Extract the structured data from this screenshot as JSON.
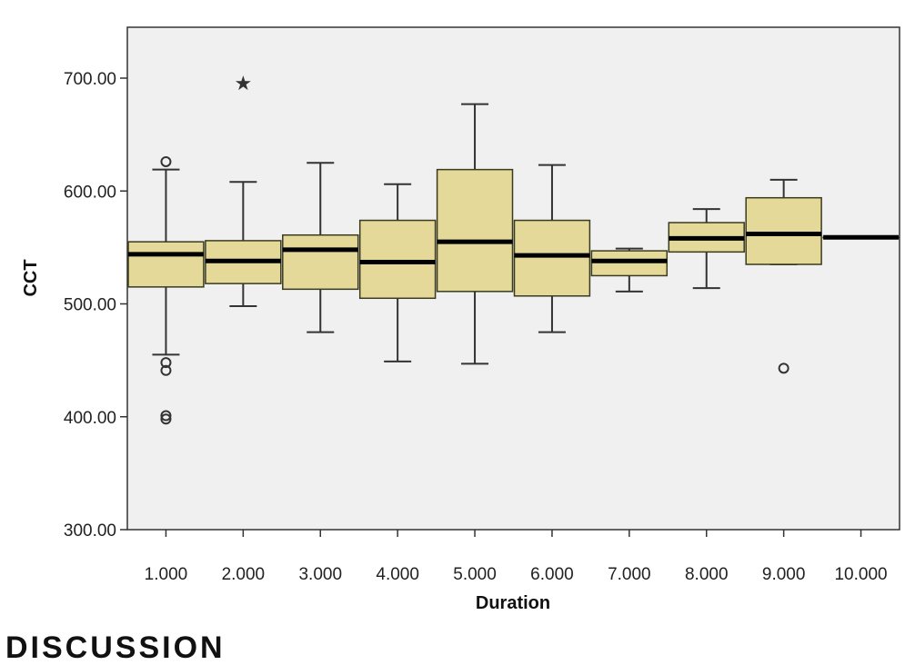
{
  "chart_data": {
    "type": "box",
    "title": "",
    "xlabel": "Duration",
    "ylabel": "CCT",
    "ylim": [
      300,
      700
    ],
    "yticks": [
      "300.00",
      "400.00",
      "500.00",
      "600.00",
      "700.00"
    ],
    "categories": [
      "1.000",
      "2.000",
      "3.000",
      "4.000",
      "5.000",
      "6.000",
      "7.000",
      "8.000",
      "9.000",
      "10.000"
    ],
    "boxes": [
      {
        "category": "1.000",
        "whisker_low": 455,
        "q1": 515,
        "median": 544,
        "q3": 555,
        "whisker_high": 619,
        "outliers": [
          626,
          448,
          441,
          401,
          398
        ],
        "extremes": []
      },
      {
        "category": "2.000",
        "whisker_low": 498,
        "q1": 518,
        "median": 538,
        "q3": 556,
        "whisker_high": 608,
        "outliers": [],
        "extremes": [
          696
        ]
      },
      {
        "category": "3.000",
        "whisker_low": 475,
        "q1": 513,
        "median": 548,
        "q3": 561,
        "whisker_high": 625,
        "outliers": [],
        "extremes": []
      },
      {
        "category": "4.000",
        "whisker_low": 449,
        "q1": 505,
        "median": 537,
        "q3": 574,
        "whisker_high": 606,
        "outliers": [],
        "extremes": []
      },
      {
        "category": "5.000",
        "whisker_low": 447,
        "q1": 511,
        "median": 555,
        "q3": 619,
        "whisker_high": 677,
        "outliers": [],
        "extremes": []
      },
      {
        "category": "6.000",
        "whisker_low": 475,
        "q1": 507,
        "median": 543,
        "q3": 574,
        "whisker_high": 623,
        "outliers": [],
        "extremes": []
      },
      {
        "category": "7.000",
        "whisker_low": 511,
        "q1": 525,
        "median": 538,
        "q3": 547,
        "whisker_high": 549,
        "outliers": [],
        "extremes": []
      },
      {
        "category": "8.000",
        "whisker_low": 514,
        "q1": 546,
        "median": 558,
        "q3": 572,
        "whisker_high": 584,
        "outliers": [],
        "extremes": []
      },
      {
        "category": "9.000",
        "whisker_low": 535,
        "q1": 535,
        "median": 562,
        "q3": 594,
        "whisker_high": 610,
        "outliers": [
          443
        ],
        "extremes": []
      },
      {
        "category": "10.000",
        "whisker_low": 559,
        "q1": 559,
        "median": 559,
        "q3": 559,
        "whisker_high": 559,
        "outliers": [],
        "extremes": []
      }
    ],
    "grid": false,
    "colors": {
      "box_fill": "#E5D99A",
      "box_stroke": "#3A3A1E",
      "median": "#000000",
      "plot_background": "#F0F0F0"
    }
  },
  "page": {
    "heading": "DISCUSSION"
  }
}
